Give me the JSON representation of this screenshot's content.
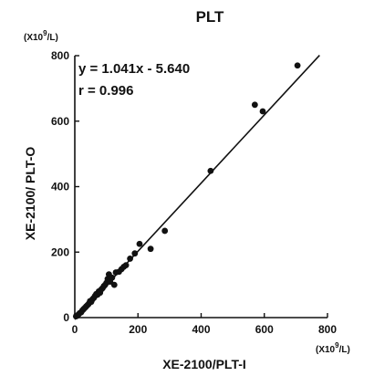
{
  "chart_data": {
    "type": "scatter",
    "title": "PLT",
    "xlabel": "XE-2100/PLT-I",
    "ylabel": "XE-2100/ PLT-O",
    "unit_base": "(X10",
    "unit_exp": "9",
    "unit_tail": "/L)",
    "xlim": [
      0,
      800
    ],
    "ylim": [
      0,
      800
    ],
    "xticks": [
      "0",
      "200",
      "400",
      "600",
      "800"
    ],
    "yticks": [
      "0",
      "200",
      "400",
      "600",
      "800"
    ],
    "annotations": [
      "y = 1.041x - 5.640",
      "r = 0.996"
    ],
    "fit": {
      "slope": 1.041,
      "intercept": -5.64,
      "x_range": [
        0,
        775
      ]
    },
    "points": [
      [
        4,
        4
      ],
      [
        8,
        6
      ],
      [
        12,
        10
      ],
      [
        16,
        14
      ],
      [
        20,
        16
      ],
      [
        24,
        22
      ],
      [
        28,
        26
      ],
      [
        32,
        30
      ],
      [
        36,
        34
      ],
      [
        40,
        38
      ],
      [
        44,
        42
      ],
      [
        48,
        50
      ],
      [
        52,
        48
      ],
      [
        56,
        56
      ],
      [
        60,
        60
      ],
      [
        64,
        66
      ],
      [
        68,
        72
      ],
      [
        72,
        70
      ],
      [
        76,
        80
      ],
      [
        80,
        76
      ],
      [
        84,
        86
      ],
      [
        88,
        90
      ],
      [
        92,
        96
      ],
      [
        96,
        100
      ],
      [
        100,
        106
      ],
      [
        104,
        118
      ],
      [
        108,
        132
      ],
      [
        112,
        110
      ],
      [
        118,
        122
      ],
      [
        125,
        100
      ],
      [
        130,
        138
      ],
      [
        140,
        140
      ],
      [
        148,
        148
      ],
      [
        155,
        155
      ],
      [
        162,
        160
      ],
      [
        175,
        180
      ],
      [
        190,
        196
      ],
      [
        205,
        225
      ],
      [
        240,
        210
      ],
      [
        285,
        265
      ],
      [
        430,
        448
      ],
      [
        570,
        650
      ],
      [
        595,
        630
      ],
      [
        705,
        770
      ]
    ]
  }
}
